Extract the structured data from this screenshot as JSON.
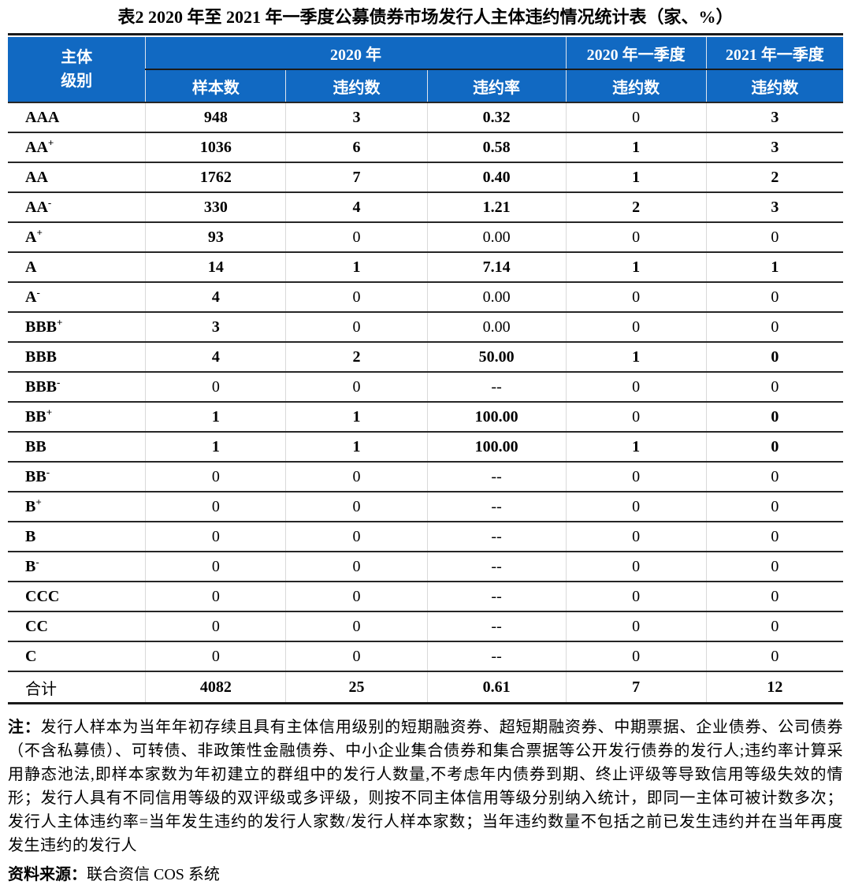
{
  "page": {
    "title": "表2  2020 年至 2021 年一季度公募债券市场发行人主体违约情况统计表（家、%）"
  },
  "colors": {
    "header_blue": "#1169C2",
    "header_line": "#1a1a1a",
    "row_line": "#262626"
  },
  "table": {
    "header": {
      "entity_line1": "主体",
      "entity_line2": "级别",
      "group_2020": "2020 年",
      "q1_2020": "2020 年一季度",
      "q1_2021": "2021 年一季度",
      "sub_sample": "样本数",
      "sub_default_count": "违约数",
      "sub_default_rate": "违约率",
      "sub_q1_2020_count": "违约数",
      "sub_q1_2021_count": "违约数"
    },
    "rows": [
      {
        "rating": "AAA",
        "sup": "",
        "cells": [
          {
            "v": "948",
            "b": true
          },
          {
            "v": "3",
            "b": true
          },
          {
            "v": "0.32",
            "b": true
          },
          {
            "v": "0",
            "b": false
          },
          {
            "v": "3",
            "b": true
          }
        ]
      },
      {
        "rating": "AA",
        "sup": "+",
        "cells": [
          {
            "v": "1036",
            "b": true
          },
          {
            "v": "6",
            "b": true
          },
          {
            "v": "0.58",
            "b": true
          },
          {
            "v": "1",
            "b": true
          },
          {
            "v": "3",
            "b": true
          }
        ]
      },
      {
        "rating": "AA",
        "sup": "",
        "cells": [
          {
            "v": "1762",
            "b": true
          },
          {
            "v": "7",
            "b": true
          },
          {
            "v": "0.40",
            "b": true
          },
          {
            "v": "1",
            "b": true
          },
          {
            "v": "2",
            "b": true
          }
        ]
      },
      {
        "rating": "AA",
        "sup": "-",
        "cells": [
          {
            "v": "330",
            "b": true
          },
          {
            "v": "4",
            "b": true
          },
          {
            "v": "1.21",
            "b": true
          },
          {
            "v": "2",
            "b": true
          },
          {
            "v": "3",
            "b": true
          }
        ]
      },
      {
        "rating": "A",
        "sup": "+",
        "cells": [
          {
            "v": "93",
            "b": true
          },
          {
            "v": "0",
            "b": false
          },
          {
            "v": "0.00",
            "b": false
          },
          {
            "v": "0",
            "b": false
          },
          {
            "v": "0",
            "b": false
          }
        ]
      },
      {
        "rating": "A",
        "sup": "",
        "cells": [
          {
            "v": "14",
            "b": true
          },
          {
            "v": "1",
            "b": true
          },
          {
            "v": "7.14",
            "b": true
          },
          {
            "v": "1",
            "b": true
          },
          {
            "v": "1",
            "b": true
          }
        ]
      },
      {
        "rating": "A",
        "sup": "-",
        "cells": [
          {
            "v": "4",
            "b": true
          },
          {
            "v": "0",
            "b": false
          },
          {
            "v": "0.00",
            "b": false
          },
          {
            "v": "0",
            "b": false
          },
          {
            "v": "0",
            "b": false
          }
        ]
      },
      {
        "rating": "BBB",
        "sup": "+",
        "cells": [
          {
            "v": "3",
            "b": true
          },
          {
            "v": "0",
            "b": false
          },
          {
            "v": "0.00",
            "b": false
          },
          {
            "v": "0",
            "b": false
          },
          {
            "v": "0",
            "b": false
          }
        ]
      },
      {
        "rating": "BBB",
        "sup": "",
        "cells": [
          {
            "v": "4",
            "b": true
          },
          {
            "v": "2",
            "b": true
          },
          {
            "v": "50.00",
            "b": true
          },
          {
            "v": "1",
            "b": true
          },
          {
            "v": "0",
            "b": true
          }
        ]
      },
      {
        "rating": "BBB",
        "sup": "-",
        "cells": [
          {
            "v": "0",
            "b": false
          },
          {
            "v": "0",
            "b": false
          },
          {
            "v": "--",
            "b": false
          },
          {
            "v": "0",
            "b": false
          },
          {
            "v": "0",
            "b": false
          }
        ]
      },
      {
        "rating": "BB",
        "sup": "+",
        "cells": [
          {
            "v": "1",
            "b": true
          },
          {
            "v": "1",
            "b": true
          },
          {
            "v": "100.00",
            "b": true
          },
          {
            "v": "0",
            "b": false
          },
          {
            "v": "0",
            "b": true
          }
        ]
      },
      {
        "rating": "BB",
        "sup": "",
        "cells": [
          {
            "v": "1",
            "b": true
          },
          {
            "v": "1",
            "b": true
          },
          {
            "v": "100.00",
            "b": true
          },
          {
            "v": "1",
            "b": true
          },
          {
            "v": "0",
            "b": true
          }
        ]
      },
      {
        "rating": "BB",
        "sup": "-",
        "cells": [
          {
            "v": "0",
            "b": false
          },
          {
            "v": "0",
            "b": false
          },
          {
            "v": "--",
            "b": false
          },
          {
            "v": "0",
            "b": false
          },
          {
            "v": "0",
            "b": false
          }
        ]
      },
      {
        "rating": "B",
        "sup": "+",
        "cells": [
          {
            "v": "0",
            "b": false
          },
          {
            "v": "0",
            "b": false
          },
          {
            "v": "--",
            "b": false
          },
          {
            "v": "0",
            "b": false
          },
          {
            "v": "0",
            "b": false
          }
        ]
      },
      {
        "rating": "B",
        "sup": "",
        "cells": [
          {
            "v": "0",
            "b": false
          },
          {
            "v": "0",
            "b": false
          },
          {
            "v": "--",
            "b": false
          },
          {
            "v": "0",
            "b": false
          },
          {
            "v": "0",
            "b": false
          }
        ]
      },
      {
        "rating": "B",
        "sup": "-",
        "cells": [
          {
            "v": "0",
            "b": false
          },
          {
            "v": "0",
            "b": false
          },
          {
            "v": "--",
            "b": false
          },
          {
            "v": "0",
            "b": false
          },
          {
            "v": "0",
            "b": false
          }
        ]
      },
      {
        "rating": "CCC",
        "sup": "",
        "cells": [
          {
            "v": "0",
            "b": false
          },
          {
            "v": "0",
            "b": false
          },
          {
            "v": "--",
            "b": false
          },
          {
            "v": "0",
            "b": false
          },
          {
            "v": "0",
            "b": false
          }
        ]
      },
      {
        "rating": "CC",
        "sup": "",
        "cells": [
          {
            "v": "0",
            "b": false
          },
          {
            "v": "0",
            "b": false
          },
          {
            "v": "--",
            "b": false
          },
          {
            "v": "0",
            "b": false
          },
          {
            "v": "0",
            "b": false
          }
        ]
      },
      {
        "rating": "C",
        "sup": "",
        "cells": [
          {
            "v": "0",
            "b": false
          },
          {
            "v": "0",
            "b": false
          },
          {
            "v": "--",
            "b": false
          },
          {
            "v": "0",
            "b": false
          },
          {
            "v": "0",
            "b": false
          }
        ]
      }
    ],
    "total": {
      "label": "合计",
      "cells": [
        {
          "v": "4082",
          "b": true
        },
        {
          "v": "25",
          "b": true
        },
        {
          "v": "0.61",
          "b": true
        },
        {
          "v": "7",
          "b": true
        },
        {
          "v": "12",
          "b": true
        }
      ]
    }
  },
  "notes": {
    "label": "注：",
    "text": "发行人样本为当年年初存续且具有主体信用级别的短期融资券、超短期融资券、中期票据、企业债券、公司债券（不含私募债）、可转债、非政策性金融债券、中小企业集合债券和集合票据等公开发行债券的发行人;违约率计算采用静态池法,即样本家数为年初建立的群组中的发行人数量,不考虑年内债券到期、终止评级等导致信用等级失效的情形；发行人具有不同信用等级的双评级或多评级，则按不同主体信用等级分别纳入统计，即同一主体可被计数多次；发行人主体违约率=当年发生违约的发行人家数/发行人样本家数；当年违约数量不包括之前已发生违约并在当年再度发生违约的发行人"
  },
  "source": {
    "label": "资料来源：",
    "text": "联合资信 COS 系统"
  }
}
